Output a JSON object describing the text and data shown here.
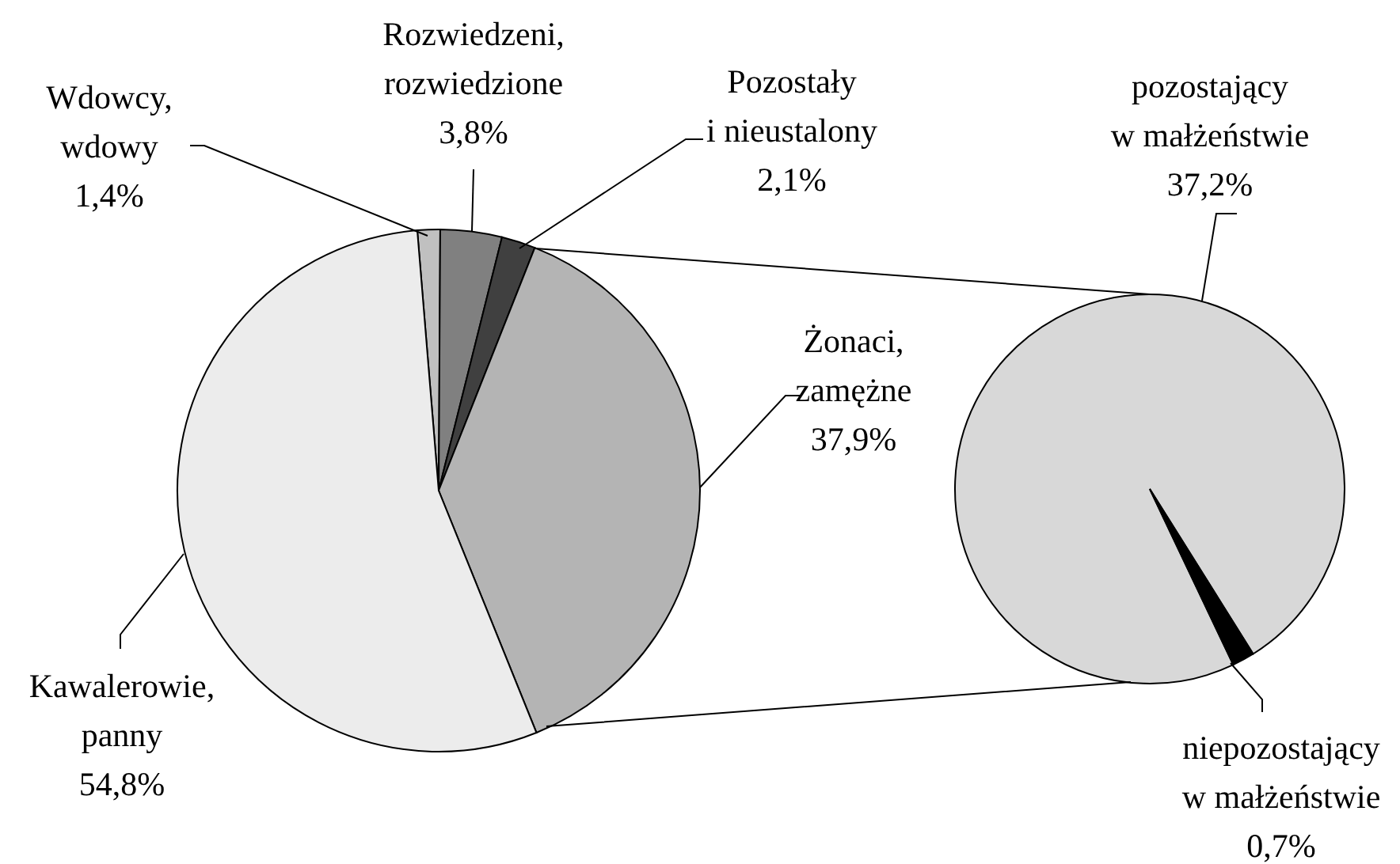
{
  "chart_data": [
    {
      "type": "pie",
      "categories": [
        "Wdowcy, wdowy",
        "Rozwiedzeni, rozwiedzione",
        "Pozostały i nieustalony",
        "Żonaci, zamężne",
        "Kawalerowie, panny"
      ],
      "values": [
        1.4,
        3.8,
        2.1,
        37.9,
        54.8
      ],
      "value_labels": [
        "1,4%",
        "3,8%",
        "2,1%",
        "37,9%",
        "54,8%"
      ],
      "colors": [
        "#c0c0c0",
        "#808080",
        "#404040",
        "#b4b4b4",
        "#ececec"
      ]
    },
    {
      "type": "pie",
      "categories": [
        "pozostający w małżeństwie",
        "niepozostający w małżeństwie"
      ],
      "values": [
        37.2,
        0.7
      ],
      "value_labels": [
        "37,2%",
        "0,7%"
      ],
      "colors": [
        "#d8d8d8",
        "#000000"
      ]
    }
  ]
}
